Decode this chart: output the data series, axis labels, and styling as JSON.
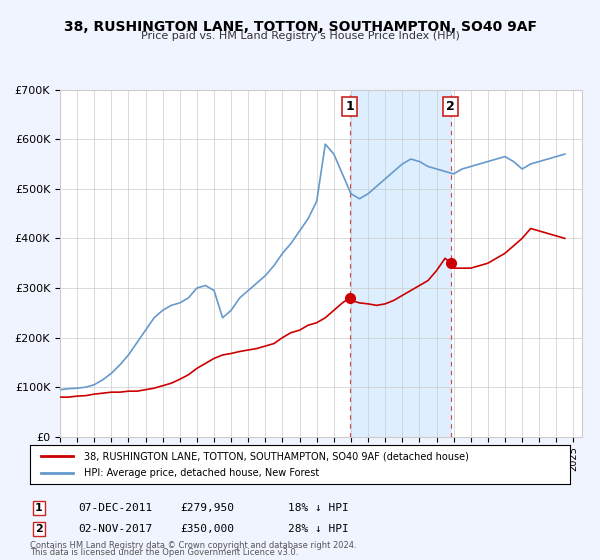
{
  "title": "38, RUSHINGTON LANE, TOTTON, SOUTHAMPTON, SO40 9AF",
  "subtitle": "Price paid vs. HM Land Registry's House Price Index (HPI)",
  "background_color": "#f0f4ff",
  "plot_bg_color": "#ffffff",
  "ylim": [
    0,
    700000
  ],
  "yticks": [
    0,
    100000,
    200000,
    300000,
    400000,
    500000,
    600000,
    700000
  ],
  "ytick_labels": [
    "£0",
    "£100K",
    "£200K",
    "£300K",
    "£400K",
    "£500K",
    "£600K",
    "£700K"
  ],
  "xlim_start": 1995.0,
  "xlim_end": 2025.5,
  "red_line_label": "38, RUSHINGTON LANE, TOTTON, SOUTHAMPTON, SO40 9AF (detached house)",
  "blue_line_label": "HPI: Average price, detached house, New Forest",
  "event1_date": 2011.92,
  "event1_label": "1",
  "event1_price": "£279,950",
  "event1_pct": "18% ↓ HPI",
  "event1_date_str": "07-DEC-2011",
  "event2_date": 2017.83,
  "event2_label": "2",
  "event2_price": "£350,000",
  "event2_pct": "28% ↓ HPI",
  "event2_date_str": "02-NOV-2017",
  "footer1": "Contains HM Land Registry data © Crown copyright and database right 2024.",
  "footer2": "This data is licensed under the Open Government Licence v3.0.",
  "red_color": "#cc0000",
  "blue_color": "#6699cc",
  "shade_color": "#ddeeff",
  "hpi_start_year": 1995,
  "hpi_values_blue": [
    95000,
    97000,
    98000,
    100000,
    105000,
    115000,
    128000,
    145000,
    165000,
    190000,
    215000,
    240000,
    255000,
    265000,
    270000,
    280000,
    300000,
    305000,
    295000,
    240000,
    255000,
    280000,
    295000,
    310000,
    325000,
    345000,
    370000,
    390000,
    415000,
    440000,
    475000,
    590000,
    570000,
    530000,
    490000,
    480000,
    490000,
    505000,
    520000,
    535000,
    550000,
    560000,
    555000,
    545000,
    540000,
    535000,
    530000,
    540000,
    545000,
    550000,
    555000,
    560000,
    565000,
    555000,
    540000,
    550000,
    555000,
    560000,
    565000,
    570000
  ],
  "red_values_sparse": {
    "years": [
      1995.0,
      1995.5,
      1996.0,
      1996.5,
      1997.0,
      1997.5,
      1998.0,
      1998.5,
      1999.0,
      1999.5,
      2000.0,
      2000.5,
      2001.0,
      2001.5,
      2002.0,
      2002.5,
      2003.0,
      2003.5,
      2004.0,
      2004.5,
      2005.0,
      2005.5,
      2006.0,
      2006.5,
      2007.0,
      2007.5,
      2008.0,
      2008.5,
      2009.0,
      2009.5,
      2010.0,
      2010.5,
      2011.0,
      2011.5,
      2011.92,
      2012.0,
      2012.5,
      2013.0,
      2013.5,
      2014.0,
      2014.5,
      2015.0,
      2015.5,
      2016.0,
      2016.5,
      2017.0,
      2017.5,
      2017.83,
      2018.0,
      2018.5,
      2019.0,
      2019.5,
      2020.0,
      2020.5,
      2021.0,
      2021.5,
      2022.0,
      2022.5,
      2023.0,
      2023.5,
      2024.0,
      2024.5
    ],
    "values": [
      80000,
      80000,
      82000,
      83000,
      86000,
      88000,
      90000,
      90000,
      92000,
      92000,
      95000,
      98000,
      103000,
      108000,
      116000,
      125000,
      138000,
      148000,
      158000,
      165000,
      168000,
      172000,
      175000,
      178000,
      183000,
      188000,
      200000,
      210000,
      215000,
      225000,
      230000,
      240000,
      255000,
      270000,
      279950,
      275000,
      270000,
      268000,
      265000,
      268000,
      275000,
      285000,
      295000,
      305000,
      315000,
      335000,
      360000,
      350000,
      340000,
      340000,
      340000,
      345000,
      350000,
      360000,
      370000,
      385000,
      400000,
      420000,
      415000,
      410000,
      405000,
      400000
    ]
  }
}
